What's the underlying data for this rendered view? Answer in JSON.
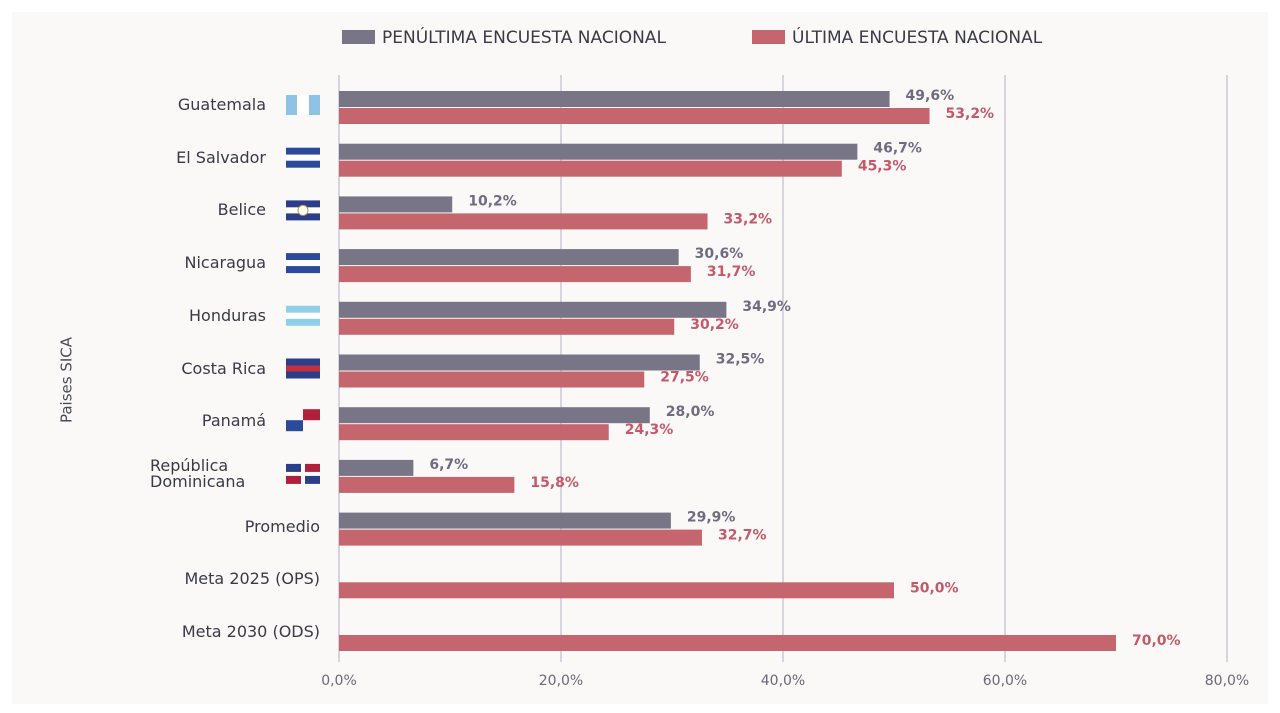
{
  "chart_data": {
    "type": "bar",
    "orientation": "horizontal",
    "y_axis_label": "Paises SICA",
    "categories": [
      "Guatemala",
      "El Salvador",
      "Belice",
      "Nicaragua",
      "Honduras",
      "Costa Rica",
      "Panamá",
      "República Dominicana",
      "Promedio",
      "Meta 2025 (OPS)",
      "Meta 2030 (ODS)"
    ],
    "series": [
      {
        "name": "PENÚLTIMA ENCUESTA NACIONAL",
        "color": "#787586",
        "values": [
          49.6,
          46.7,
          10.2,
          30.6,
          34.9,
          32.5,
          28.0,
          6.7,
          29.9,
          null,
          null
        ],
        "value_labels": [
          "49,6%",
          "46,7%",
          "10,2%",
          "30,6%",
          "34,9%",
          "32,5%",
          "28,0%",
          "6,7%",
          "29,9%",
          null,
          null
        ]
      },
      {
        "name": "ÚLTIMA ENCUESTA NACIONAL",
        "color": "#c5666f",
        "values": [
          53.2,
          45.3,
          33.2,
          31.7,
          30.2,
          27.5,
          24.3,
          15.8,
          32.7,
          50.0,
          70.0
        ],
        "value_labels": [
          "53,2%",
          "45,3%",
          "33,2%",
          "31,7%",
          "30,2%",
          "27,5%",
          "24,3%",
          "15,8%",
          "32,7%",
          "50,0%",
          "70,0%"
        ]
      }
    ],
    "xlim": [
      0,
      80
    ],
    "xticks": [
      {
        "value": 0,
        "label": "0,0%"
      },
      {
        "value": 20,
        "label": "20,0%"
      },
      {
        "value": 40,
        "label": "40,0%"
      },
      {
        "value": 60,
        "label": "60,0%"
      },
      {
        "value": 80,
        "label": "80,0%"
      }
    ],
    "grid": true,
    "legend": "top"
  }
}
